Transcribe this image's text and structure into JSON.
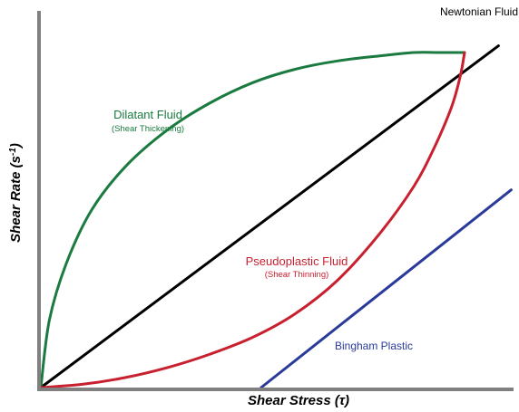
{
  "chart_data": {
    "type": "line",
    "title": "",
    "xlabel": "Shear Stress (τ)",
    "ylabel_main": "Shear Rate (s",
    "ylabel_sup": "-1",
    "ylabel_tail": ")",
    "xlim": [
      0,
      1
    ],
    "ylim": [
      0,
      1
    ],
    "series": [
      {
        "key": "newtonian",
        "name": "Newtonian Fluid",
        "subtitle": "",
        "color": "#000000",
        "x": [
          0,
          1.08
        ],
        "y": [
          0,
          1.02
        ]
      },
      {
        "key": "dilatant",
        "name": "Dilatant Fluid",
        "subtitle": "(Shear Thickening)",
        "color": "#1a7a3f",
        "x": [
          0.0,
          0.02,
          0.06,
          0.12,
          0.2,
          0.3,
          0.4,
          0.5,
          0.6,
          0.7,
          0.8,
          0.88,
          0.94,
          1.0
        ],
        "y": [
          0.0,
          0.2,
          0.37,
          0.53,
          0.66,
          0.77,
          0.85,
          0.91,
          0.95,
          0.975,
          0.99,
          1.0,
          1.0,
          1.0
        ]
      },
      {
        "key": "pseudoplastic",
        "name": "Pseudoplastic Fluid",
        "subtitle": "(Shear Thinning)",
        "color": "#c8202f",
        "x": [
          0.0,
          0.1,
          0.2,
          0.3,
          0.4,
          0.5,
          0.6,
          0.7,
          0.8,
          0.88,
          0.93,
          0.97,
          0.99,
          1.0
        ],
        "y": [
          0.0,
          0.01,
          0.03,
          0.06,
          0.1,
          0.15,
          0.22,
          0.32,
          0.46,
          0.6,
          0.72,
          0.84,
          0.93,
          1.0
        ]
      },
      {
        "key": "bingham",
        "name": "Bingham Plastic",
        "subtitle": "",
        "color": "#2a3a9a",
        "x": [
          0.52,
          1.11
        ],
        "y": [
          0.0,
          0.59
        ]
      }
    ],
    "grid": false,
    "legend": "inline labels"
  }
}
